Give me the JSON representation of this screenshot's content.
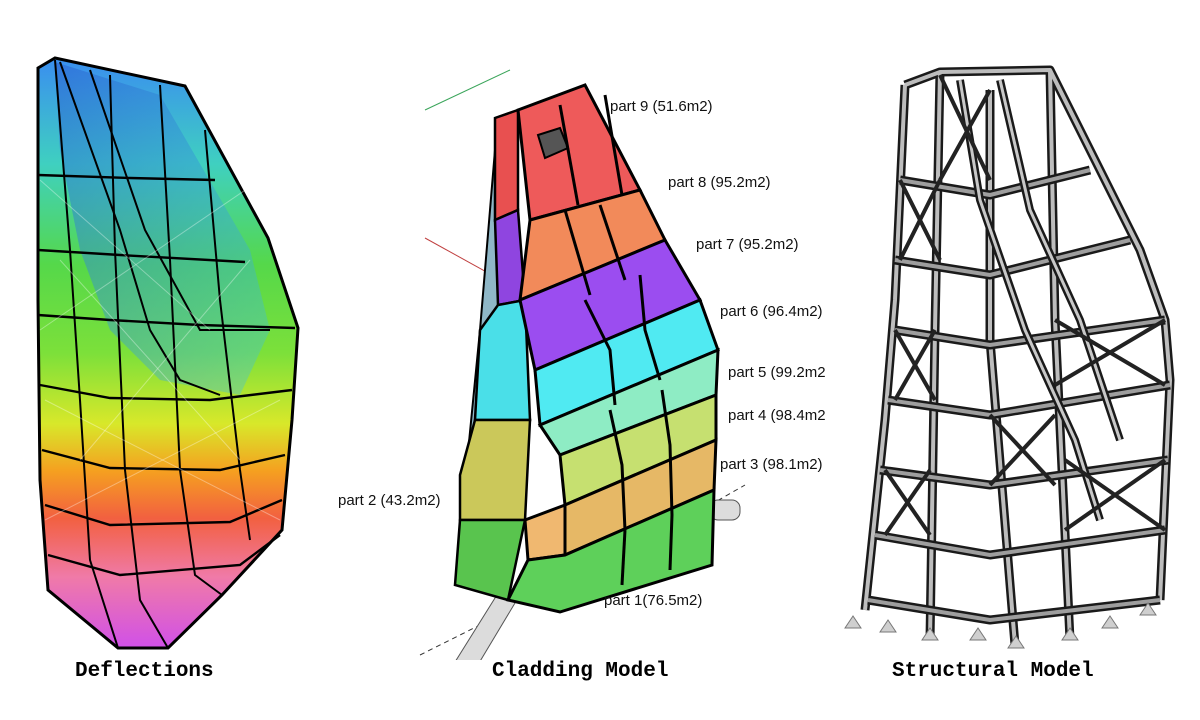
{
  "panels": {
    "deflections": {
      "caption": "Deflections"
    },
    "cladding": {
      "caption": "Cladding Model",
      "parts": [
        {
          "id": "part9",
          "label": "part 9 (51.6m2)",
          "color": "#ee5a5a"
        },
        {
          "id": "part8",
          "label": "part 8 (95.2m2)",
          "color": "#f28a5a"
        },
        {
          "id": "part7",
          "label": "part 7 (95.2m2)",
          "color": "#9b4df0"
        },
        {
          "id": "part6",
          "label": "part 6 (96.4m2)",
          "color": "#50eaf2"
        },
        {
          "id": "part5",
          "label": "part 5 (99.2m2",
          "color": "#50eaf2"
        },
        {
          "id": "part4",
          "label": "part 4 (98.4m2",
          "color": "#b6e86a"
        },
        {
          "id": "part3",
          "label": "part 3 (98.1m2)",
          "color": "#e7c06a"
        },
        {
          "id": "part2",
          "label": "part 2 (43.2m2)",
          "color": "#f0b870"
        },
        {
          "id": "part1",
          "label": "part 1(76.5m2)",
          "color": "#5ed05a"
        }
      ]
    },
    "structural": {
      "caption": "Structural Model"
    }
  }
}
